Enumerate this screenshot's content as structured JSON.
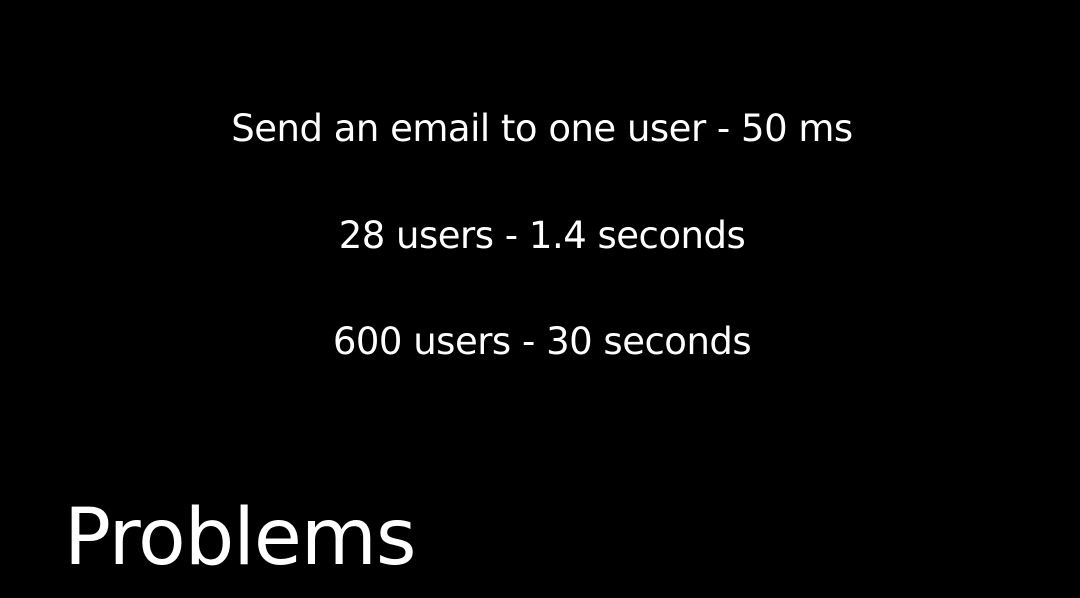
{
  "slide": {
    "lines": [
      "Send an email to one user - 50 ms",
      "28 users - 1.4 seconds",
      "600 users - 30 seconds"
    ],
    "title": "Problems",
    "colors": {
      "background": "#000000",
      "text": "#ffffff"
    }
  }
}
